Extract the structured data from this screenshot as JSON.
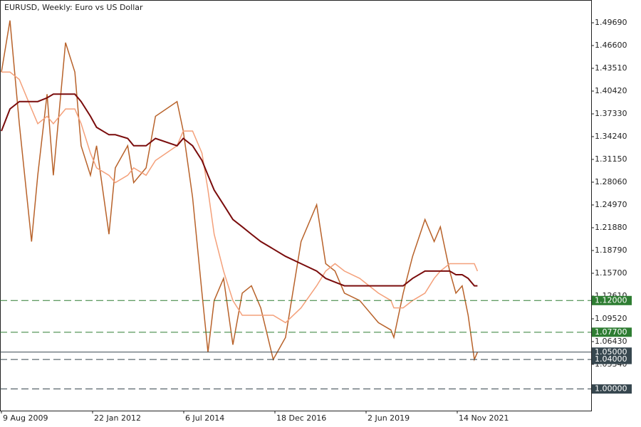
{
  "chart_data": {
    "type": "line",
    "title": "EURUSD, Weekly:  Euro vs US Dollar",
    "x": [
      "2009-08-09",
      "2009-11-01",
      "2010-02-01",
      "2010-06-01",
      "2010-08-01",
      "2010-11-01",
      "2011-01-01",
      "2011-05-01",
      "2011-08-01",
      "2011-10-01",
      "2012-01-01",
      "2012-03-01",
      "2012-07-01",
      "2012-09-01",
      "2013-01-01",
      "2013-03-01",
      "2013-07-01",
      "2013-10-01",
      "2014-05-01",
      "2014-07-01",
      "2014-10-01",
      "2015-01-01",
      "2015-03-01",
      "2015-05-01",
      "2015-08-01",
      "2015-11-01",
      "2016-02-01",
      "2016-05-01",
      "2016-08-01",
      "2016-12-01",
      "2017-04-01",
      "2017-09-01",
      "2018-02-01",
      "2018-05-01",
      "2018-08-01",
      "2018-11-01",
      "2019-04-01",
      "2019-10-01",
      "2020-02-01",
      "2020-03-01",
      "2020-06-01",
      "2020-09-01",
      "2021-01-01",
      "2021-04-01",
      "2021-06-01",
      "2021-09-01",
      "2021-11-01",
      "2022-01-01",
      "2022-03-01",
      "2022-05-01",
      "2022-06-01"
    ],
    "series": [
      {
        "color": "#b8622a",
        "values": [
          1.43,
          1.5,
          1.36,
          1.2,
          1.29,
          1.4,
          1.29,
          1.47,
          1.43,
          1.33,
          1.29,
          1.33,
          1.21,
          1.3,
          1.33,
          1.28,
          1.3,
          1.37,
          1.39,
          1.35,
          1.26,
          1.13,
          1.05,
          1.12,
          1.15,
          1.06,
          1.13,
          1.14,
          1.11,
          1.04,
          1.07,
          1.2,
          1.25,
          1.17,
          1.16,
          1.13,
          1.12,
          1.09,
          1.08,
          1.07,
          1.13,
          1.18,
          1.23,
          1.2,
          1.22,
          1.16,
          1.13,
          1.14,
          1.1,
          1.04,
          1.05
        ]
      },
      {
        "color": "#f4a07a",
        "values": [
          1.43,
          1.43,
          1.42,
          1.38,
          1.36,
          1.37,
          1.36,
          1.38,
          1.38,
          1.36,
          1.32,
          1.3,
          1.29,
          1.28,
          1.29,
          1.3,
          1.29,
          1.31,
          1.33,
          1.35,
          1.35,
          1.32,
          1.27,
          1.21,
          1.16,
          1.12,
          1.1,
          1.1,
          1.1,
          1.1,
          1.09,
          1.11,
          1.14,
          1.16,
          1.17,
          1.16,
          1.15,
          1.13,
          1.12,
          1.11,
          1.11,
          1.12,
          1.13,
          1.15,
          1.16,
          1.17,
          1.17,
          1.17,
          1.17,
          1.17,
          1.16
        ]
      },
      {
        "color": "#7a0c0c",
        "values": [
          1.35,
          1.38,
          1.39,
          1.39,
          1.39,
          1.395,
          1.4,
          1.4,
          1.4,
          1.39,
          1.37,
          1.355,
          1.345,
          1.345,
          1.34,
          1.33,
          1.33,
          1.34,
          1.33,
          1.34,
          1.33,
          1.31,
          1.29,
          1.27,
          1.25,
          1.23,
          1.22,
          1.21,
          1.2,
          1.19,
          1.18,
          1.17,
          1.16,
          1.15,
          1.145,
          1.14,
          1.14,
          1.14,
          1.14,
          1.14,
          1.14,
          1.15,
          1.16,
          1.16,
          1.16,
          1.16,
          1.155,
          1.155,
          1.15,
          1.14,
          1.14
        ]
      }
    ],
    "xlim": [
      "2009-07-26",
      "2025-06-22"
    ],
    "xticks": [
      {
        "value": "2009-08-09",
        "label": "9 Aug 2009"
      },
      {
        "value": "2012-01-22",
        "label": "22 Jan 2012"
      },
      {
        "value": "2014-07-06",
        "label": "6 Jul 2014"
      },
      {
        "value": "2016-12-18",
        "label": "18 Dec 2016"
      },
      {
        "value": "2019-06-02",
        "label": "2 Jun 2019"
      },
      {
        "value": "2021-11-14",
        "label": "14 Nov 2021"
      }
    ],
    "ylim": [
      0.9706,
      1.5278
    ],
    "yticks": [
      {
        "value": 1.4969,
        "label": "1.49690"
      },
      {
        "value": 1.466,
        "label": "1.46600"
      },
      {
        "value": 1.4351,
        "label": "1.43510"
      },
      {
        "value": 1.4042,
        "label": "1.40420"
      },
      {
        "value": 1.3733,
        "label": "1.37330"
      },
      {
        "value": 1.3424,
        "label": "1.34240"
      },
      {
        "value": 1.3115,
        "label": "1.31150"
      },
      {
        "value": 1.2806,
        "label": "1.28060"
      },
      {
        "value": 1.2497,
        "label": "1.24970"
      },
      {
        "value": 1.2188,
        "label": "1.21880"
      },
      {
        "value": 1.1879,
        "label": "1.18790"
      },
      {
        "value": 1.157,
        "label": "1.15700"
      },
      {
        "value": 1.1261,
        "label": "1.12610"
      },
      {
        "value": 1.0952,
        "label": "1.09520"
      },
      {
        "value": 1.0643,
        "label": "1.06430"
      },
      {
        "value": 1.0334,
        "label": "1.03340"
      }
    ],
    "levels": [
      {
        "value": 1.12,
        "label": "1.12000",
        "color": "#2e7d32",
        "style": "dashed"
      },
      {
        "value": 1.077,
        "label": "1.07700",
        "color": "#2e7d32",
        "style": "dashed"
      },
      {
        "value": 1.05,
        "label": "1.05000",
        "color": "#37474f",
        "style": "solid"
      },
      {
        "value": 1.04,
        "label": "1.04000",
        "color": "#37474f",
        "style": "dashed"
      },
      {
        "value": 1.0,
        "label": "1.00000",
        "color": "#37474f",
        "style": "dashed"
      }
    ]
  }
}
